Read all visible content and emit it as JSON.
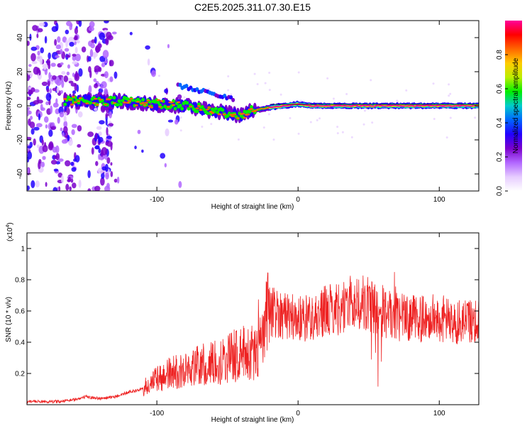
{
  "title": "C2E5.2025.311.07.30.E15",
  "chart_data": [
    {
      "type": "heatmap",
      "xlabel": "Height of straight line (km)",
      "ylabel": "Frequency (Hz)",
      "xlim": [
        -192,
        128
      ],
      "ylim": [
        -50,
        50
      ],
      "xticks": [
        -100,
        0,
        100
      ],
      "xtick_labels": [
        "-100",
        "0",
        "100"
      ],
      "yticks": [
        -40,
        -20,
        0,
        20,
        40
      ],
      "ytick_labels": [
        "-40",
        "-20",
        "0",
        "20",
        "40"
      ],
      "ridge": {
        "description": "dominant spectral ridge",
        "x": [
          -160,
          -140,
          -120,
          -100,
          -80,
          -60,
          -40,
          -34,
          -20,
          -10,
          0,
          10,
          50,
          100,
          128
        ],
        "y": [
          3,
          3,
          2.5,
          1,
          0,
          -3,
          -6,
          -3,
          -1,
          0,
          1,
          0,
          0,
          0,
          0
        ]
      },
      "colorbar": {
        "label": "Normalized spectral amplitude",
        "range": [
          0,
          1
        ],
        "ticks": [
          0,
          0.2,
          0.4,
          0.6,
          0.8
        ],
        "tick_labels": [
          "0.0",
          "0.2",
          "0.4",
          "0.6",
          "0.8"
        ],
        "colormap": [
          "#ffffff",
          "#e6ccff",
          "#b266ff",
          "#7a00cc",
          "#2200ff",
          "#0066ff",
          "#00cccc",
          "#00ee00",
          "#bbee00",
          "#ffcc00",
          "#ff6600",
          "#ff0000",
          "#ff0099"
        ]
      }
    },
    {
      "type": "line",
      "xlabel": "Height of straight line (km)",
      "ylabel": "SNR (10 * v/v)",
      "scale_label": "(x10",
      "scale_exp": "4",
      "scale_close": ")",
      "xlim": [
        -192,
        128
      ],
      "ylim": [
        0,
        1.1
      ],
      "xticks": [
        -100,
        0,
        100
      ],
      "xtick_labels": [
        "-100",
        "0",
        "100"
      ],
      "yticks": [
        0.2,
        0.4,
        0.6,
        0.8,
        1
      ],
      "ytick_labels": [
        "0.2",
        "0.4",
        "0.6",
        "0.8",
        "1"
      ],
      "color": "#ee2222",
      "series": [
        {
          "name": "SNR",
          "x": [
            -192,
            -170,
            -160,
            -150,
            -140,
            -130,
            -120,
            -110,
            -100,
            -90,
            -80,
            -70,
            -60,
            -50,
            -40,
            -30,
            -25,
            -22,
            -20,
            -10,
            0,
            10,
            20,
            30,
            40,
            50,
            60,
            70,
            80,
            90,
            100,
            110,
            120,
            128
          ],
          "y": [
            0.02,
            0.02,
            0.03,
            0.05,
            0.04,
            0.05,
            0.08,
            0.1,
            0.16,
            0.2,
            0.22,
            0.25,
            0.26,
            0.3,
            0.33,
            0.33,
            0.42,
            0.55,
            0.6,
            0.58,
            0.55,
            0.56,
            0.6,
            0.62,
            0.66,
            0.64,
            0.6,
            0.56,
            0.55,
            0.55,
            0.56,
            0.52,
            0.54,
            0.55
          ]
        }
      ]
    }
  ]
}
